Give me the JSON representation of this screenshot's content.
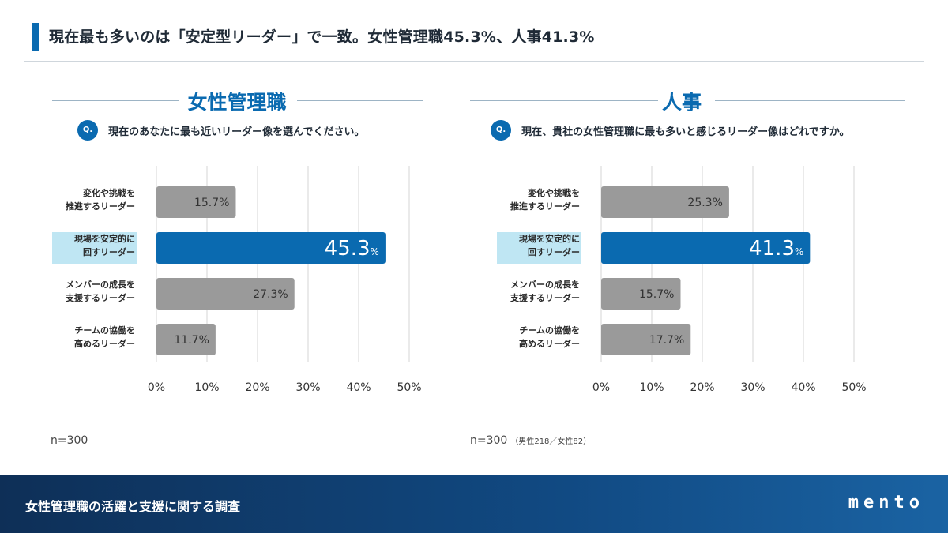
{
  "header": {
    "title": "現在最も多いのは「安定型リーダー」で一致。女性管理職45.3%、人事41.3%"
  },
  "panels": [
    {
      "title": "女性管理職",
      "question_icon": "Q.",
      "question": "現在のあなたに最も近いリーダー像を選んでください。",
      "n_label": "n=300",
      "n_sub": ""
    },
    {
      "title": "人事",
      "question_icon": "Q.",
      "question": "現在、貴社の女性管理職に最も多いと感じるリーダー像はどれですか。",
      "n_label": "n=300",
      "n_sub": "（男性218／女性82）"
    }
  ],
  "chart_data": [
    {
      "type": "bar",
      "orientation": "horizontal",
      "title": "女性管理職",
      "categories": [
        [
          "変化や挑戦を",
          "推進するリーダー"
        ],
        [
          "現場を安定的に",
          "回すリーダー"
        ],
        [
          "メンバーの成長を",
          "支援するリーダー"
        ],
        [
          "チームの協働を",
          "高めるリーダー"
        ]
      ],
      "values": [
        15.7,
        45.3,
        27.3,
        11.7
      ],
      "value_labels": [
        "15.7%",
        "45.3",
        "27.3%",
        "11.7%"
      ],
      "highlight_index": 1,
      "highlight_suffix": "%",
      "xlim": [
        0,
        50
      ],
      "xticks": [
        "0%",
        "10%",
        "20%",
        "30%",
        "40%",
        "50%"
      ],
      "grid": true
    },
    {
      "type": "bar",
      "orientation": "horizontal",
      "title": "人事",
      "categories": [
        [
          "変化や挑戦を",
          "推進するリーダー"
        ],
        [
          "現場を安定的に",
          "回すリーダー"
        ],
        [
          "メンバーの成長を",
          "支援するリーダー"
        ],
        [
          "チームの協働を",
          "高めるリーダー"
        ]
      ],
      "values": [
        25.3,
        41.3,
        15.7,
        17.7
      ],
      "value_labels": [
        "25.3%",
        "41.3",
        "15.7%",
        "17.7%"
      ],
      "highlight_index": 1,
      "highlight_suffix": "%",
      "xlim": [
        0,
        50
      ],
      "xticks": [
        "0%",
        "10%",
        "20%",
        "30%",
        "40%",
        "50%"
      ],
      "grid": true
    }
  ],
  "colors": {
    "accent": "#0a6ab0",
    "bar_default": "#9a9a9a",
    "highlight_label_bg": "#bfe6f3",
    "grid": "#d6d6d6"
  },
  "footer": {
    "text": "女性管理職の活躍と支援に関する調査",
    "logo": "mento"
  }
}
